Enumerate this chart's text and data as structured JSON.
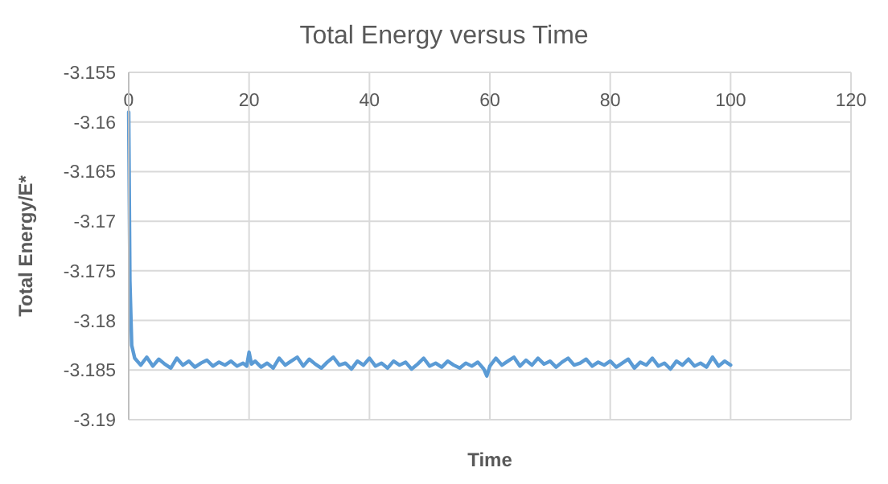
{
  "chart_data": {
    "type": "line",
    "title": "Total Energy versus Time",
    "xlabel": "Time",
    "ylabel": "Total Energy/E*",
    "xlim": [
      0,
      120
    ],
    "xticks": [
      0,
      20,
      40,
      60,
      80,
      100,
      120
    ],
    "ylim": [
      -3.19,
      -3.155
    ],
    "yticks": [
      -3.19,
      -3.185,
      -3.18,
      -3.175,
      -3.17,
      -3.165,
      -3.16,
      -3.155
    ],
    "grid": true,
    "marker": "none",
    "line_style": "solid",
    "series": [
      {
        "color": "#5b9bd5",
        "x": [
          0,
          0.2,
          0.5,
          1,
          2,
          3,
          4,
          5,
          6,
          7,
          8,
          9,
          10,
          11,
          12,
          13,
          14,
          15,
          16,
          17,
          18,
          19,
          19.6,
          20,
          20.4,
          21,
          22,
          23,
          24,
          25,
          26,
          27,
          28,
          29,
          30,
          31,
          32,
          33,
          34,
          35,
          36,
          37,
          38,
          39,
          40,
          41,
          42,
          43,
          44,
          45,
          46,
          47,
          48,
          49,
          50,
          51,
          52,
          53,
          54,
          55,
          56,
          57,
          58,
          59,
          59.5,
          60,
          61,
          62,
          63,
          64,
          65,
          66,
          67,
          68,
          69,
          70,
          71,
          72,
          73,
          74,
          75,
          76,
          77,
          78,
          79,
          80,
          81,
          82,
          83,
          84,
          85,
          86,
          87,
          88,
          89,
          90,
          91,
          92,
          93,
          94,
          95,
          96,
          97,
          98,
          99,
          100
        ],
        "values": [
          -3.159,
          -3.176,
          -3.1825,
          -3.1838,
          -3.1845,
          -3.1837,
          -3.1846,
          -3.1839,
          -3.1844,
          -3.1848,
          -3.1838,
          -3.1845,
          -3.1841,
          -3.1847,
          -3.1843,
          -3.184,
          -3.1846,
          -3.1842,
          -3.1845,
          -3.1841,
          -3.1846,
          -3.1843,
          -3.1846,
          -3.1832,
          -3.1844,
          -3.1841,
          -3.1847,
          -3.1843,
          -3.1848,
          -3.1838,
          -3.1845,
          -3.1841,
          -3.1837,
          -3.1846,
          -3.1839,
          -3.1844,
          -3.1848,
          -3.1842,
          -3.1837,
          -3.1845,
          -3.1843,
          -3.1849,
          -3.1841,
          -3.1845,
          -3.1838,
          -3.1846,
          -3.1843,
          -3.1848,
          -3.1841,
          -3.1845,
          -3.1842,
          -3.1849,
          -3.1844,
          -3.1838,
          -3.1846,
          -3.1843,
          -3.1847,
          -3.1841,
          -3.1845,
          -3.1848,
          -3.1843,
          -3.1846,
          -3.1842,
          -3.1849,
          -3.1856,
          -3.1846,
          -3.1838,
          -3.1845,
          -3.1841,
          -3.1837,
          -3.1846,
          -3.184,
          -3.1845,
          -3.1838,
          -3.1844,
          -3.1841,
          -3.1847,
          -3.1842,
          -3.1838,
          -3.1845,
          -3.1843,
          -3.1839,
          -3.1846,
          -3.1842,
          -3.1845,
          -3.1841,
          -3.1847,
          -3.1843,
          -3.1839,
          -3.1848,
          -3.1842,
          -3.1845,
          -3.1838,
          -3.1846,
          -3.1843,
          -3.1849,
          -3.1841,
          -3.1845,
          -3.1839,
          -3.1846,
          -3.1843,
          -3.1847,
          -3.1837,
          -3.1846,
          -3.1841,
          -3.1845
        ]
      }
    ]
  }
}
